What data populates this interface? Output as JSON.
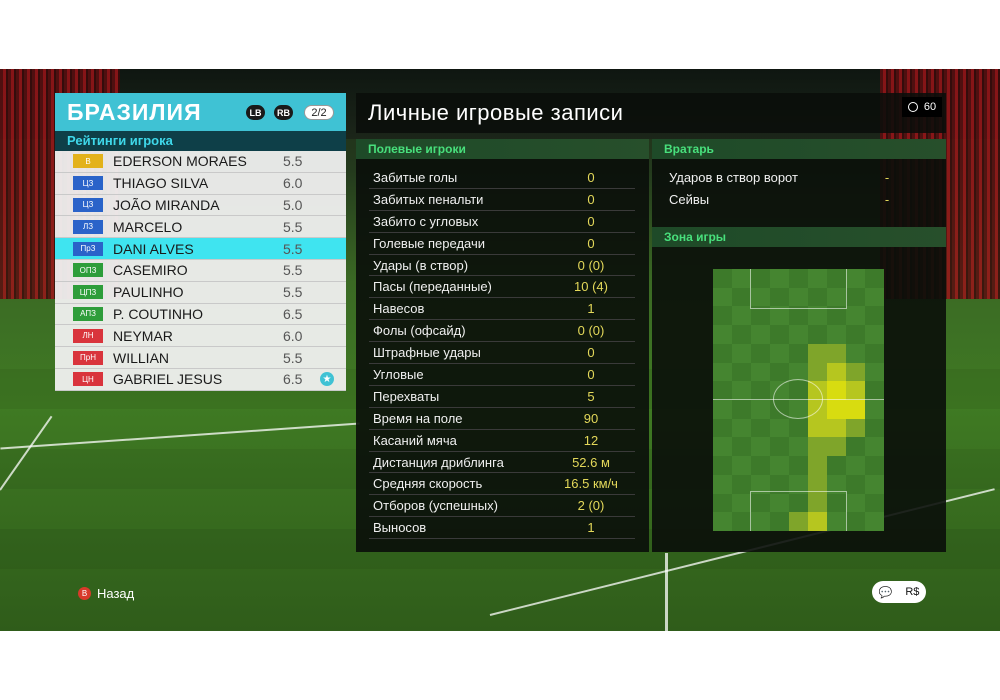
{
  "team": {
    "name": "БРАЗИЛИЯ",
    "lb": "LB",
    "rb": "RB",
    "page": "2/2",
    "ratings_title": "Рейтинги игрока"
  },
  "players": [
    {
      "pos": "В",
      "pos_color": "#e3b21a",
      "name": "EDERSON MORAES",
      "rating": "5.5"
    },
    {
      "pos": "ЦЗ",
      "pos_color": "#2a63c9",
      "name": "THIAGO SILVA",
      "rating": "6.0"
    },
    {
      "pos": "ЦЗ",
      "pos_color": "#2a63c9",
      "name": "JOÃO MIRANDA",
      "rating": "5.0"
    },
    {
      "pos": "ЛЗ",
      "pos_color": "#2a63c9",
      "name": "MARCELO",
      "rating": "5.5"
    },
    {
      "pos": "ПрЗ",
      "pos_color": "#2a63c9",
      "name": "DANI ALVES",
      "rating": "5.5",
      "selected": true
    },
    {
      "pos": "ОПЗ",
      "pos_color": "#2e9d3a",
      "name": "CASEMIRO",
      "rating": "5.5"
    },
    {
      "pos": "ЦПЗ",
      "pos_color": "#2e9d3a",
      "name": "PAULINHO",
      "rating": "5.5"
    },
    {
      "pos": "АПЗ",
      "pos_color": "#2e9d3a",
      "name": "P. COUTINHO",
      "rating": "6.5"
    },
    {
      "pos": "ЛН",
      "pos_color": "#d9343c",
      "name": "NEYMAR",
      "rating": "6.0"
    },
    {
      "pos": "ПрН",
      "pos_color": "#d9343c",
      "name": "WILLIAN",
      "rating": "5.5"
    },
    {
      "pos": "ЦН",
      "pos_color": "#d9343c",
      "name": "GABRIEL JESUS",
      "rating": "6.5",
      "star": true
    }
  ],
  "records": {
    "title": "Личные игровые записи",
    "timer": "60",
    "field_title": "Полевые игроки",
    "stats": [
      {
        "label": "Забитые голы",
        "value": "0"
      },
      {
        "label": "Забитых пенальти",
        "value": "0"
      },
      {
        "label": "Забито с угловых",
        "value": "0"
      },
      {
        "label": "Голевые передачи",
        "value": "0"
      },
      {
        "label": "Удары (в створ)",
        "value": "0 (0)"
      },
      {
        "label": "Пасы (переданные)",
        "value": "10 (4)"
      },
      {
        "label": "Навесов",
        "value": "1"
      },
      {
        "label": "Фолы (офсайд)",
        "value": "0 (0)"
      },
      {
        "label": "Штрафные удары",
        "value": "0"
      },
      {
        "label": "Угловые",
        "value": "0"
      },
      {
        "label": "Перехваты",
        "value": "5"
      },
      {
        "label": "Время на поле",
        "value": "90"
      },
      {
        "label": "Касаний мяча",
        "value": "12"
      },
      {
        "label": "Дистанция дриблинга",
        "value": "52.6 м"
      },
      {
        "label": "Средняя скорость",
        "value": "16.5 км/ч"
      },
      {
        "label": "Отборов (успешных)",
        "value": "2 (0)"
      },
      {
        "label": "Выносов",
        "value": "1"
      }
    ],
    "gk_title": "Вратарь",
    "gk_stats": [
      {
        "label": "Ударов в створ ворот",
        "value": "-"
      },
      {
        "label": "Сейвы",
        "value": "-"
      }
    ],
    "zone_title": "Зона игры"
  },
  "footer": {
    "back_button": "B",
    "back_label": "Назад",
    "icons": [
      "chat-icon",
      "currency-icon"
    ],
    "icon_glyphs": [
      "💬",
      "R$"
    ]
  },
  "colors": {
    "accent": "#3fc2d4",
    "stat_value": "#e3d85a",
    "section_head": "#48e07c"
  }
}
